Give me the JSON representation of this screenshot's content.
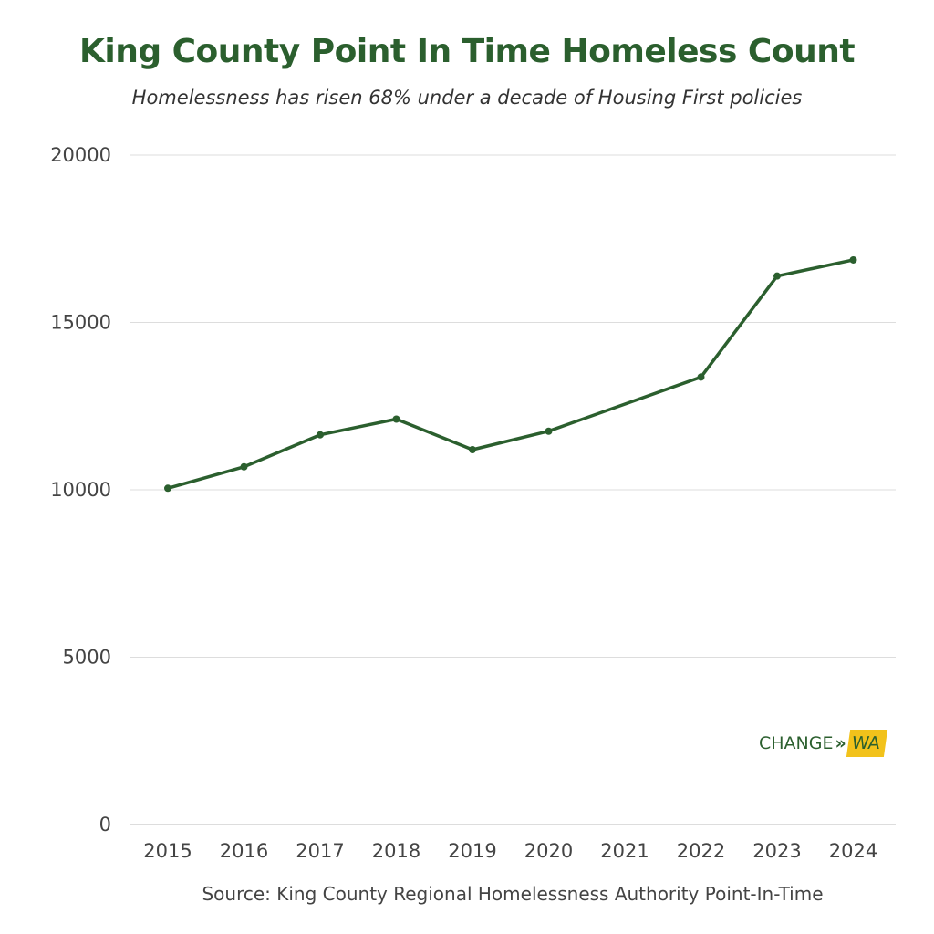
{
  "title": "King County Point In Time Homeless Count",
  "subtitle": "Homelessness has risen 68% under a decade of Housing First policies",
  "source": "Source: King County Regional Homelessness Authority Point-In-Time",
  "logo": {
    "left": "CHANGE",
    "arrows": "»",
    "right": "WA",
    "accent_color": "#f2c21b",
    "text_color": "#2b5f2e"
  },
  "colors": {
    "line": "#2b5f2e",
    "grid": "#dddddd",
    "title": "#2b5f2e"
  },
  "chart_data": {
    "type": "line",
    "title": "King County Point In Time Homeless Count",
    "subtitle": "Homelessness has risen 68% under a decade of Housing First policies",
    "xlabel": "",
    "ylabel": "",
    "categories": [
      "2015",
      "2016",
      "2017",
      "2018",
      "2019",
      "2020",
      "2021",
      "2022",
      "2023",
      "2024"
    ],
    "series": [
      {
        "values": [
          10047,
          10688,
          11643,
          12112,
          11199,
          11751,
          null,
          13368,
          16385,
          16868
        ]
      }
    ],
    "y_ticks": [
      0,
      5000,
      10000,
      15000,
      20000
    ],
    "ylim": [
      0,
      20000
    ],
    "grid": true,
    "legend": "none",
    "markers": true
  }
}
